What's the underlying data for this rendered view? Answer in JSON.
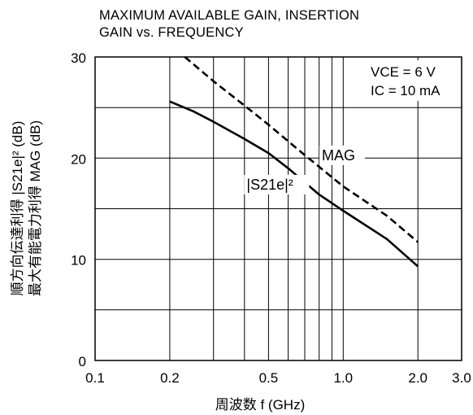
{
  "chart_data": {
    "type": "line",
    "title_lines": [
      "MAXIMUM AVAILABLE GAIN, INSERTION",
      "GAIN vs. FREQUENCY"
    ],
    "xlabel": "周波数 f (GHz)",
    "ylabel_lines": [
      "順方向伝達利得 |S21e|² (dB)",
      "最大有能電力利得 MAG (dB)"
    ],
    "x_scale": "log",
    "xlim": [
      0.1,
      3.0
    ],
    "ylim": [
      0,
      30
    ],
    "x_ticks": [
      {
        "value": 0.1,
        "label": "0.1"
      },
      {
        "value": 0.2,
        "label": "0.2"
      },
      {
        "value": 0.5,
        "label": "0.5"
      },
      {
        "value": 1.0,
        "label": "1.0"
      },
      {
        "value": 2.0,
        "label": "2.0"
      },
      {
        "value": 3.0,
        "label": "3.0"
      }
    ],
    "y_ticks": [
      {
        "value": 0,
        "label": "0"
      },
      {
        "value": 10,
        "label": "10"
      },
      {
        "value": 20,
        "label": "20"
      },
      {
        "value": 30,
        "label": "30"
      }
    ],
    "grid": true,
    "conditions": [
      "VCE = 6 V",
      "IC = 10 mA"
    ],
    "series": [
      {
        "name": "MAG",
        "style": "dashed",
        "points": [
          [
            0.23,
            30.0
          ],
          [
            0.3,
            27.6
          ],
          [
            0.4,
            25.2
          ],
          [
            0.5,
            23.3
          ],
          [
            0.7,
            20.3
          ],
          [
            1.0,
            17.2
          ],
          [
            1.5,
            14.3
          ],
          [
            2.0,
            11.7
          ]
        ]
      },
      {
        "name": "|S21e|²",
        "style": "solid",
        "points": [
          [
            0.2,
            25.6
          ],
          [
            0.25,
            24.6
          ],
          [
            0.3,
            23.6
          ],
          [
            0.4,
            21.9
          ],
          [
            0.5,
            20.5
          ],
          [
            0.6,
            19.0
          ],
          [
            0.7,
            17.6
          ],
          [
            0.8,
            16.4
          ],
          [
            1.0,
            14.8
          ],
          [
            1.5,
            12.0
          ],
          [
            2.0,
            9.3
          ]
        ]
      }
    ],
    "annotations": [
      {
        "text": "MAG",
        "x": 0.82,
        "y": 19.8
      },
      {
        "text": "|S21e|²",
        "x": 0.5,
        "y": 16.9
      }
    ]
  }
}
